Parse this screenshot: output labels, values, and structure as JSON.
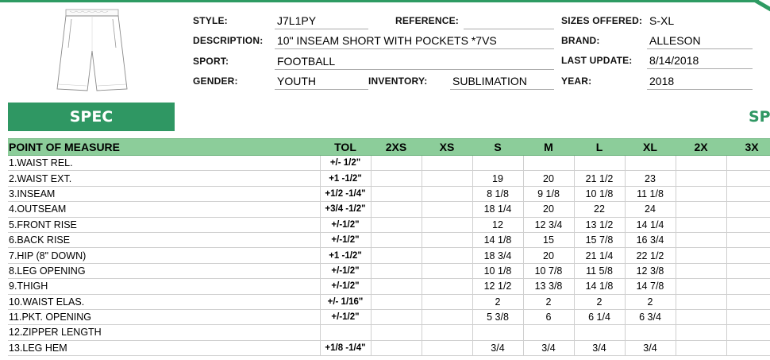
{
  "header": {
    "style_label": "STYLE:",
    "style_value": "J7L1PY",
    "reference_label": "REFERENCE:",
    "reference_value": "",
    "sizes_label": "SIZES OFFERED:",
    "sizes_value": "S-XL",
    "description_label": "DESCRIPTION:",
    "description_value": "10\" INSEAM SHORT WITH POCKETS *7VS",
    "brand_label": "BRAND:",
    "brand_value": "ALLESON",
    "sport_label": "SPORT:",
    "sport_value": "FOOTBALL",
    "update_label": "LAST UPDATE:",
    "update_value": "8/14/2018",
    "gender_label": "GENDER:",
    "gender_value": "YOUTH",
    "inventory_label": "INVENTORY:",
    "inventory_value": "SUBLIMATION",
    "year_label": "YEAR:",
    "year_value": "2018"
  },
  "banner": {
    "spec_label": "SPEC",
    "spec_label_2": "SP"
  },
  "table": {
    "pom_header": "POINT OF MEASURE",
    "tol_header": "TOL",
    "size_headers": [
      "2XS",
      "XS",
      "S",
      "M",
      "L",
      "XL",
      "2X",
      "3X"
    ],
    "rows": [
      {
        "pom": "1.WAIST REL.",
        "tol": "+/- 1/2\"",
        "values": [
          "",
          "",
          "",
          "",
          "",
          "",
          "",
          ""
        ]
      },
      {
        "pom": "2.WAIST EXT.",
        "tol": "+1 -1/2\"",
        "values": [
          "",
          "",
          "19",
          "20",
          "21 1/2",
          "23",
          "",
          ""
        ]
      },
      {
        "pom": "3.INSEAM",
        "tol": "+1/2 -1/4\"",
        "values": [
          "",
          "",
          "8 1/8",
          "9 1/8",
          "10 1/8",
          "11 1/8",
          "",
          ""
        ]
      },
      {
        "pom": "4.OUTSEAM",
        "tol": "+3/4 -1/2\"",
        "values": [
          "",
          "",
          "18 1/4",
          "20",
          "22",
          "24",
          "",
          ""
        ]
      },
      {
        "pom": "5.FRONT RISE",
        "tol": "+/-1/2\"",
        "values": [
          "",
          "",
          "12",
          "12 3/4",
          "13 1/2",
          "14 1/4",
          "",
          ""
        ]
      },
      {
        "pom": "6.BACK RISE",
        "tol": "+/-1/2\"",
        "values": [
          "",
          "",
          "14 1/8",
          "15",
          "15 7/8",
          "16 3/4",
          "",
          ""
        ]
      },
      {
        "pom": "7.HIP (8\" DOWN)",
        "tol": "+1 -1/2\"",
        "values": [
          "",
          "",
          "18 3/4",
          "20",
          "21 1/4",
          "22 1/2",
          "",
          ""
        ]
      },
      {
        "pom": "8.LEG OPENING",
        "tol": "+/-1/2\"",
        "values": [
          "",
          "",
          "10 1/8",
          "10 7/8",
          "11 5/8",
          "12 3/8",
          "",
          ""
        ]
      },
      {
        "pom": "9.THIGH",
        "tol": "+/-1/2\"",
        "values": [
          "",
          "",
          "12 1/2",
          "13 3/8",
          "14 1/8",
          "14 7/8",
          "",
          ""
        ]
      },
      {
        "pom": "10.WAIST ELAS.",
        "tol": "+/- 1/16\"",
        "values": [
          "",
          "",
          "2",
          "2",
          "2",
          "2",
          "",
          ""
        ]
      },
      {
        "pom": "11.PKT. OPENING",
        "tol": "+/-1/2\"",
        "values": [
          "",
          "",
          "5 3/8",
          "6",
          "6 1/4",
          "6 3/4",
          "",
          ""
        ]
      },
      {
        "pom": "12.ZIPPER LENGTH",
        "tol": "",
        "values": [
          "",
          "",
          "",
          "",
          "",
          "",
          "",
          ""
        ]
      },
      {
        "pom": "13.LEG HEM",
        "tol": "+1/8 -1/4\"",
        "values": [
          "",
          "",
          "3/4",
          "3/4",
          "3/4",
          "3/4",
          "",
          ""
        ]
      }
    ]
  },
  "icons": {
    "garment": "shorts-sketch-icon"
  },
  "colors": {
    "accent": "#2f9763",
    "header_fill": "#8ccd9a"
  }
}
